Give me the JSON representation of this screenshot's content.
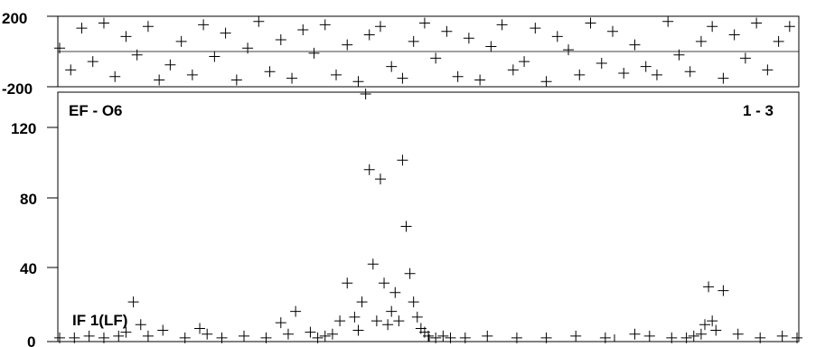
{
  "chart_data": [
    {
      "type": "scatter",
      "title": "",
      "xlabel": "",
      "ylabel": "",
      "ylim": [
        -200,
        200
      ],
      "yticks": [
        "200",
        "-200"
      ],
      "grid": true,
      "marker": "plus",
      "series": [
        {
          "x": [
            0,
            0.015,
            0.03,
            0.045,
            0.06,
            0.075,
            0.09,
            0.105,
            0.12,
            0.135,
            0.15,
            0.165,
            0.18,
            0.195,
            0.21,
            0.225,
            0.24,
            0.255,
            0.27,
            0.285,
            0.3,
            0.315,
            0.33,
            0.345,
            0.36,
            0.375,
            0.39,
            0.405,
            0.42,
            0.435,
            0.45,
            0.465,
            0.48,
            0.495,
            0.51,
            0.525,
            0.54,
            0.555,
            0.57,
            0.585,
            0.6,
            0.615,
            0.63,
            0.645,
            0.66,
            0.675,
            0.69,
            0.705,
            0.72,
            0.735,
            0.75,
            0.765,
            0.78,
            0.795,
            0.81,
            0.825,
            0.84,
            0.855,
            0.87,
            0.885,
            0.9,
            0.915,
            0.93,
            0.945,
            0.96,
            0.975,
            0.99
          ],
          "values": [
            20,
            -110,
            140,
            -60,
            170,
            -150,
            90,
            -20,
            150,
            -170,
            -80,
            60,
            -140,
            160,
            -30,
            110,
            -170,
            20,
            180,
            -120,
            70,
            -160,
            130,
            -10,
            160,
            -140,
            40,
            -180,
            100,
            150,
            -90,
            -160,
            60,
            170,
            -40,
            120,
            -150,
            80,
            -170,
            30,
            160,
            -110,
            -60,
            140,
            -180,
            90,
            10,
            -140,
            170,
            -70,
            120,
            -130,
            40,
            -90,
            -140,
            180,
            -20,
            -120,
            60,
            150,
            -160,
            100,
            -40,
            170,
            -110,
            60,
            150
          ]
        }
      ]
    },
    {
      "type": "scatter",
      "title": "",
      "xlabel": "",
      "ylabel": "",
      "ylim": [
        0,
        130
      ],
      "yticks": [
        "0",
        "40",
        "80",
        "120"
      ],
      "grid": false,
      "marker": "plus",
      "annotations": {
        "top_left": "EF - O6",
        "top_right": "1 - 3",
        "bottom_left": "IF 1(LF)"
      },
      "series": [
        {
          "x": [
            0.0,
            0.02,
            0.04,
            0.06,
            0.08,
            0.09,
            0.1,
            0.11,
            0.12,
            0.14,
            0.17,
            0.19,
            0.2,
            0.22,
            0.25,
            0.28,
            0.3,
            0.31,
            0.32,
            0.34,
            0.35,
            0.36,
            0.37,
            0.38,
            0.39,
            0.4,
            0.405,
            0.41,
            0.415,
            0.42,
            0.425,
            0.43,
            0.435,
            0.44,
            0.445,
            0.45,
            0.455,
            0.46,
            0.465,
            0.47,
            0.475,
            0.48,
            0.485,
            0.49,
            0.495,
            0.5,
            0.51,
            0.52,
            0.53,
            0.55,
            0.58,
            0.62,
            0.66,
            0.7,
            0.74,
            0.78,
            0.8,
            0.83,
            0.85,
            0.86,
            0.87,
            0.875,
            0.88,
            0.885,
            0.89,
            0.9,
            0.92,
            0.95,
            0.98,
            1.0
          ],
          "values": [
            1,
            1,
            2,
            1,
            2,
            4,
            20,
            8,
            2,
            5,
            1,
            6,
            3,
            1,
            2,
            1,
            9,
            3,
            15,
            4,
            1,
            2,
            3,
            10,
            30,
            12,
            5,
            20,
            130,
            90,
            40,
            10,
            85,
            30,
            8,
            15,
            25,
            10,
            95,
            60,
            35,
            20,
            12,
            6,
            4,
            2,
            1,
            2,
            1,
            1,
            2,
            1,
            1,
            2,
            1,
            3,
            2,
            1,
            1,
            2,
            3,
            8,
            28,
            10,
            5,
            26,
            3,
            1,
            2,
            1
          ]
        }
      ]
    }
  ]
}
